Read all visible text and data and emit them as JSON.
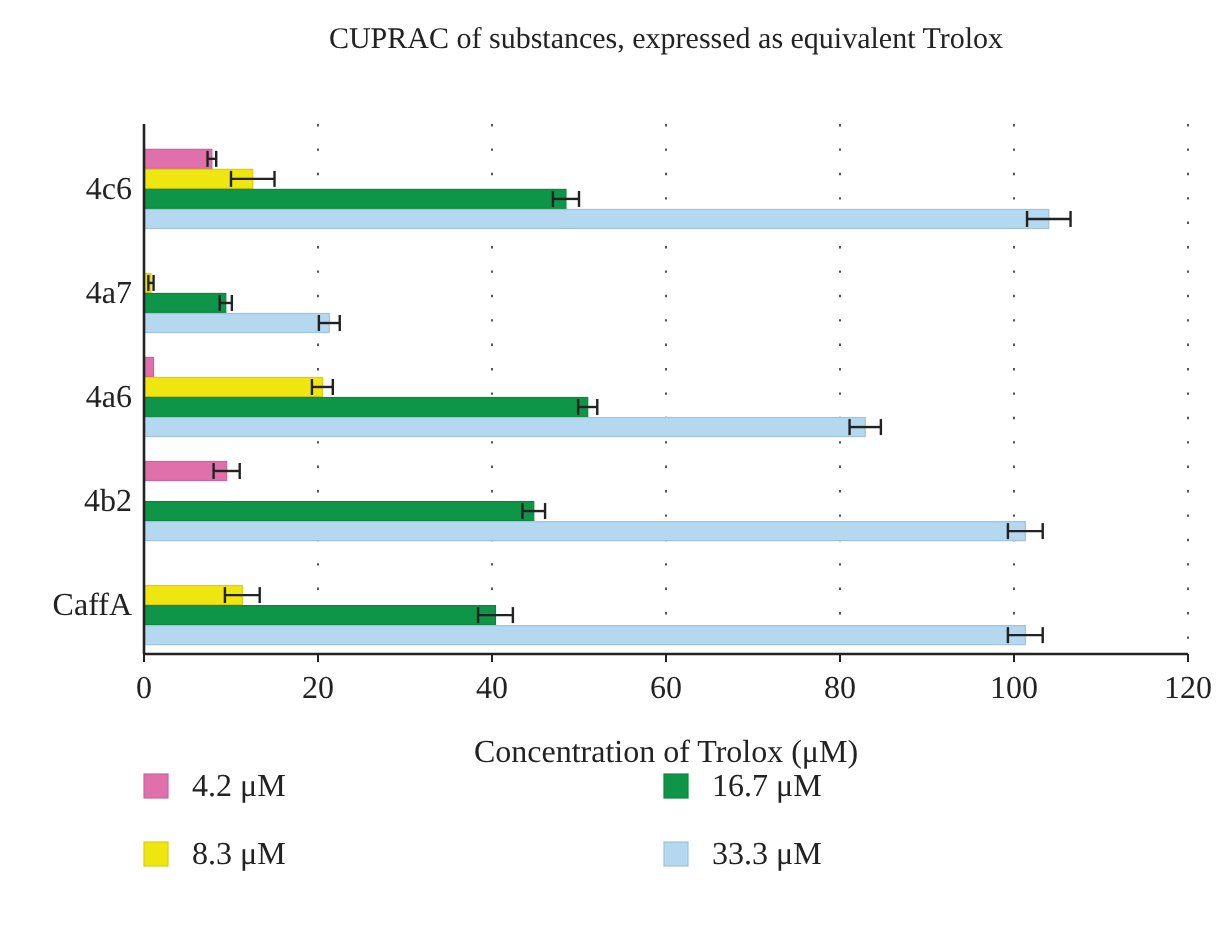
{
  "chart_data": {
    "type": "bar",
    "orientation": "horizontal",
    "title": "CUPRAC of substances, expressed as equivalent Trolox",
    "xlabel": "Concentration of Trolox (μM)",
    "categories": [
      "4c6",
      "4a7",
      "4a6",
      "4b2",
      "CaffA"
    ],
    "series": [
      {
        "name": "4.2 μM",
        "color": "#e070ab",
        "values": [
          7.8,
          null,
          1.1,
          9.5,
          null
        ],
        "errors": [
          0.5,
          null,
          null,
          1.5,
          null
        ]
      },
      {
        "name": "8.3 μM",
        "color": "#f0e60f",
        "values": [
          12.5,
          0.8,
          20.5,
          null,
          11.3
        ],
        "errors": [
          2.5,
          0.3,
          1.2,
          null,
          2
        ]
      },
      {
        "name": "16.7 μM",
        "color": "#0f9547",
        "values": [
          48.5,
          9.4,
          51,
          44.8,
          40.4
        ],
        "errors": [
          1.5,
          0.7,
          1.1,
          1.3,
          2
        ]
      },
      {
        "name": "33.3 μM",
        "color": "#b3d8ef",
        "values": [
          104,
          21.3,
          82.9,
          101.3,
          101.3
        ],
        "errors": [
          2.5,
          1.2,
          1.8,
          2,
          2
        ]
      }
    ],
    "xlim": [
      0,
      120
    ],
    "xticks": [
      0,
      20,
      40,
      60,
      80,
      100,
      120
    ],
    "grid": "x",
    "legend": "bottom"
  }
}
